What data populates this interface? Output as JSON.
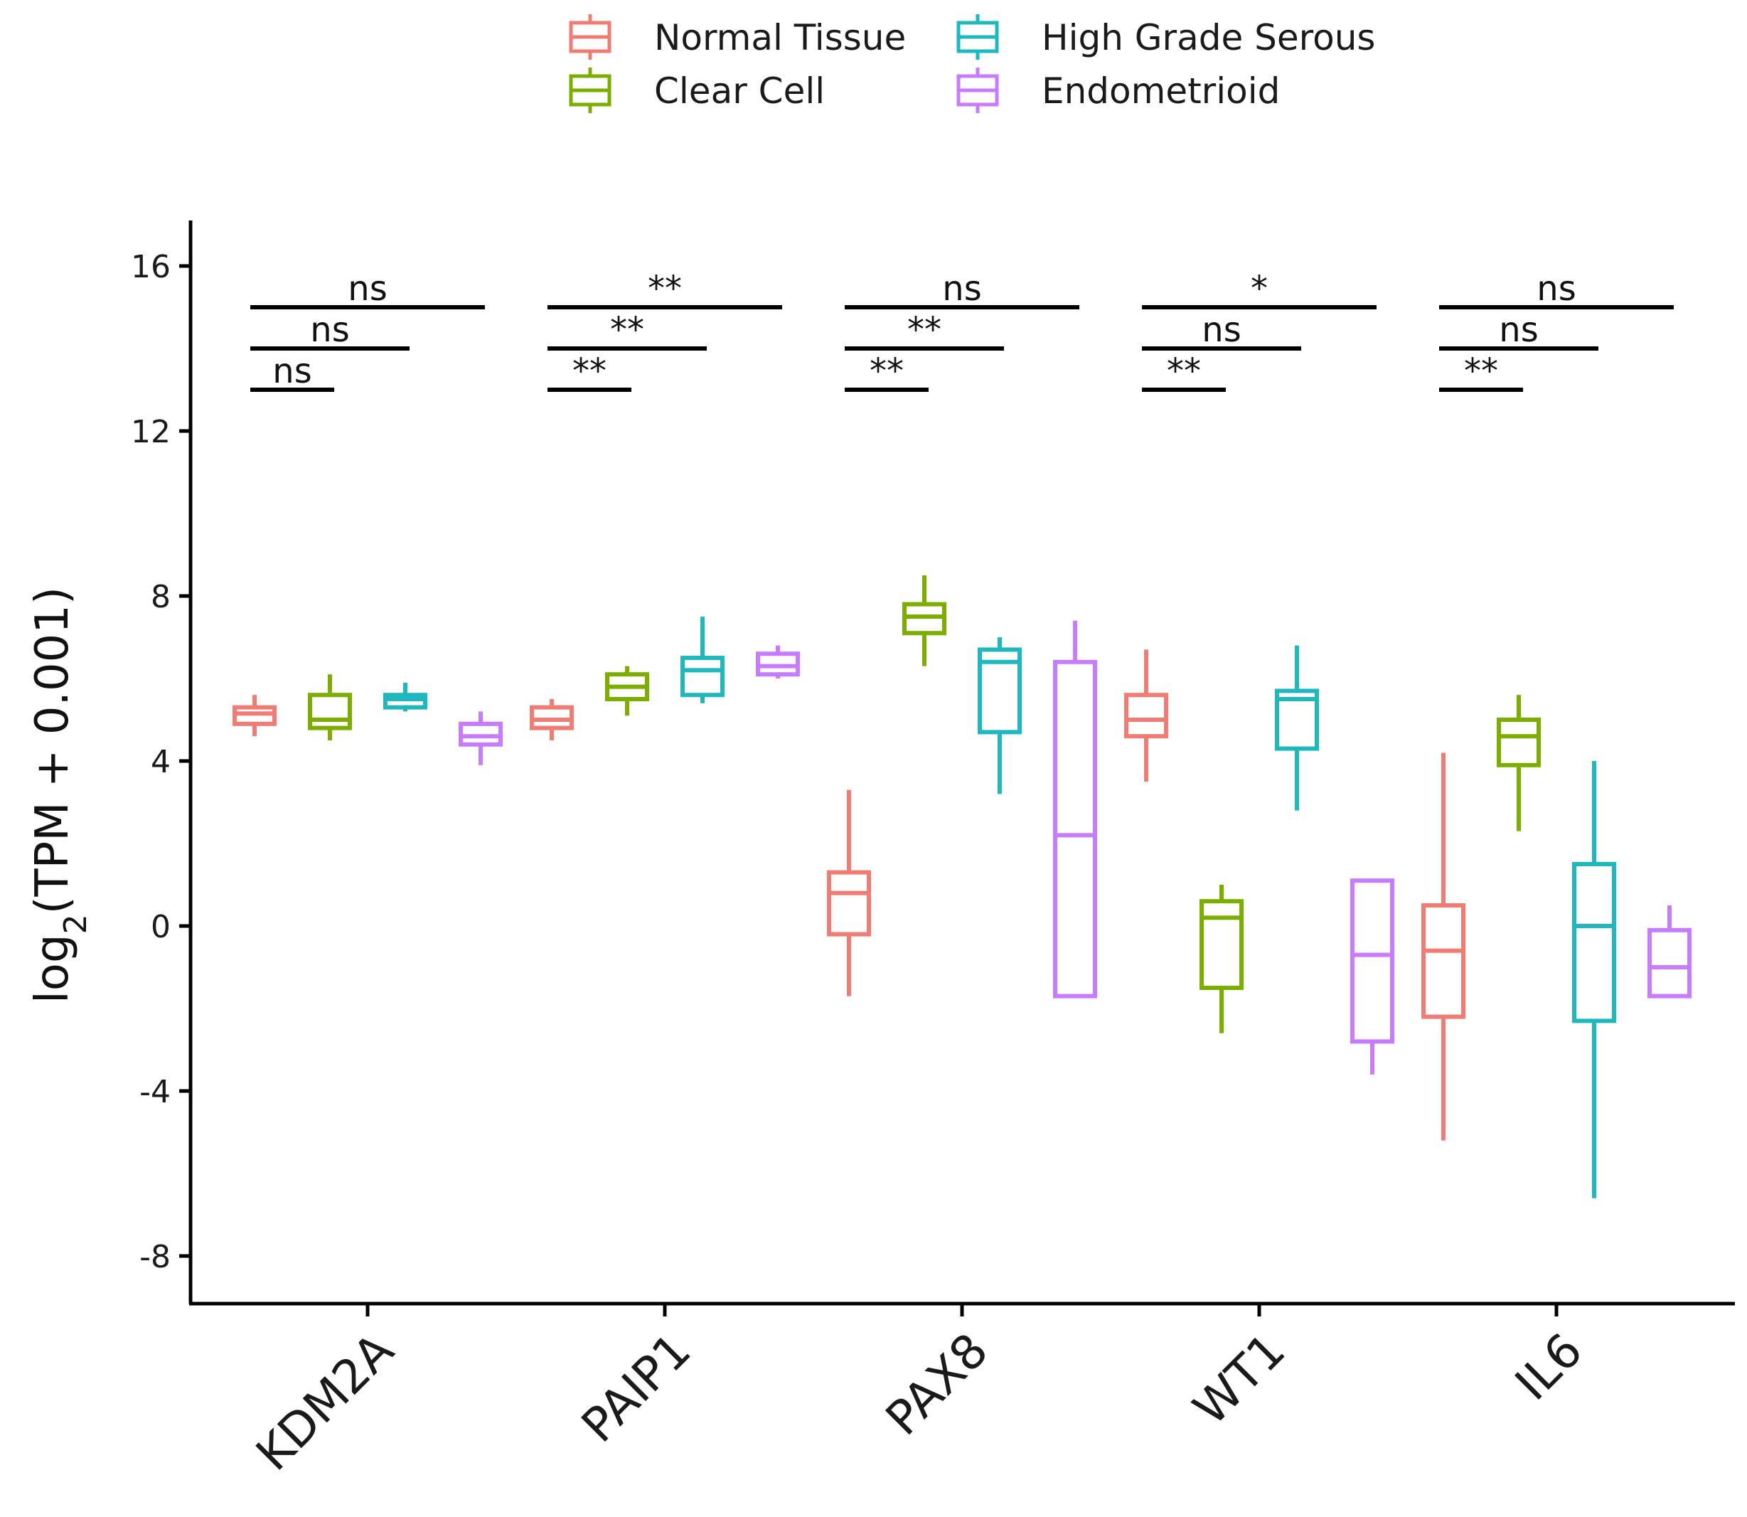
{
  "chart_data": {
    "type": "box",
    "ylabel_parts": {
      "prefix": "log",
      "subscript": "2",
      "suffix": "(TPM + 0.001)"
    },
    "ylim": [
      -9.2,
      17
    ],
    "yticks": [
      "-8",
      "-4",
      "0",
      "4",
      "8",
      "12",
      "16"
    ],
    "legend_position": "top",
    "categories": [
      "KDM2A",
      "PAIP1",
      "PAX8",
      "WT1",
      "IL6"
    ],
    "series": [
      {
        "name": "Normal Tissue",
        "color": "#F07C73",
        "boxes": [
          {
            "whisker_low": 4.6,
            "q1": 4.9,
            "median": 5.15,
            "q3": 5.3,
            "whisker_high": 5.6
          },
          {
            "whisker_low": 4.5,
            "q1": 4.8,
            "median": 5.0,
            "q3": 5.3,
            "whisker_high": 5.5
          },
          {
            "whisker_low": -1.7,
            "q1": -0.2,
            "median": 0.8,
            "q3": 1.3,
            "whisker_high": 3.3
          },
          {
            "whisker_low": 3.5,
            "q1": 4.6,
            "median": 5.0,
            "q3": 5.6,
            "whisker_high": 6.7
          },
          {
            "whisker_low": -5.2,
            "q1": -2.2,
            "median": -0.6,
            "q3": 0.5,
            "whisker_high": 4.2
          }
        ]
      },
      {
        "name": "Clear Cell",
        "color": "#7CAE00",
        "boxes": [
          {
            "whisker_low": 4.5,
            "q1": 4.8,
            "median": 5.0,
            "q3": 5.6,
            "whisker_high": 6.1
          },
          {
            "whisker_low": 5.1,
            "q1": 5.5,
            "median": 5.8,
            "q3": 6.1,
            "whisker_high": 6.3
          },
          {
            "whisker_low": 6.3,
            "q1": 7.1,
            "median": 7.5,
            "q3": 7.8,
            "whisker_high": 8.5
          },
          {
            "whisker_low": -2.6,
            "q1": -1.5,
            "median": 0.2,
            "q3": 0.6,
            "whisker_high": 1.0
          },
          {
            "whisker_low": 2.3,
            "q1": 3.9,
            "median": 4.6,
            "q3": 5.0,
            "whisker_high": 5.6
          }
        ]
      },
      {
        "name": "High Grade Serous",
        "color": "#1EB8BE",
        "boxes": [
          {
            "whisker_low": 5.2,
            "q1": 5.3,
            "median": 5.5,
            "q3": 5.6,
            "whisker_high": 5.9
          },
          {
            "whisker_low": 5.4,
            "q1": 5.6,
            "median": 6.2,
            "q3": 6.5,
            "whisker_high": 7.5
          },
          {
            "whisker_low": 3.2,
            "q1": 4.7,
            "median": 6.4,
            "q3": 6.7,
            "whisker_high": 7.0
          },
          {
            "whisker_low": 2.8,
            "q1": 4.3,
            "median": 5.5,
            "q3": 5.7,
            "whisker_high": 6.8
          },
          {
            "whisker_low": -6.6,
            "q1": -2.3,
            "median": 0.0,
            "q3": 1.5,
            "whisker_high": 4.0
          }
        ]
      },
      {
        "name": "Endometrioid",
        "color": "#C77CFF",
        "boxes": [
          {
            "whisker_low": 3.9,
            "q1": 4.4,
            "median": 4.6,
            "q3": 4.9,
            "whisker_high": 5.2
          },
          {
            "whisker_low": 6.0,
            "q1": 6.1,
            "median": 6.3,
            "q3": 6.6,
            "whisker_high": 6.8
          },
          {
            "whisker_low": -1.7,
            "q1": -1.7,
            "median": 2.2,
            "q3": 6.4,
            "whisker_high": 7.4
          },
          {
            "whisker_low": -3.6,
            "q1": -2.8,
            "median": -0.7,
            "q3": 1.1,
            "whisker_high": 1.1
          },
          {
            "whisker_low": -1.7,
            "q1": -1.7,
            "median": -1.0,
            "q3": -0.1,
            "whisker_high": 0.5
          }
        ]
      }
    ],
    "significance": [
      {
        "category": "KDM2A",
        "labels": [
          "ns",
          "ns",
          "ns"
        ]
      },
      {
        "category": "PAIP1",
        "labels": [
          "**",
          "**",
          "**"
        ]
      },
      {
        "category": "PAX8",
        "labels": [
          "**",
          "**",
          "ns"
        ]
      },
      {
        "category": "WT1",
        "labels": [
          "**",
          "ns",
          "*"
        ]
      },
      {
        "category": "IL6",
        "labels": [
          "**",
          "ns",
          "ns"
        ]
      }
    ],
    "significance_levels_y": [
      13,
      14,
      15
    ]
  }
}
